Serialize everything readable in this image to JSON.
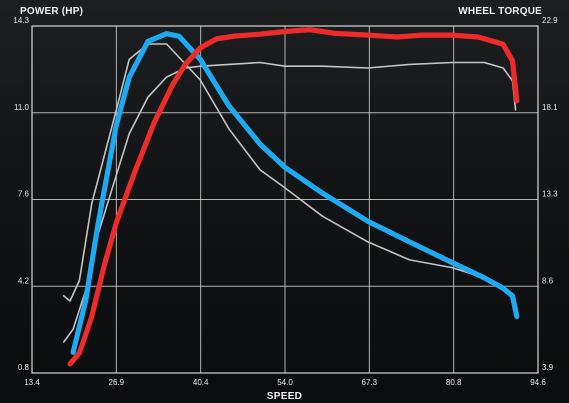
{
  "chart_data": {
    "type": "line",
    "left_axis_title": "POWER (HP)",
    "right_axis_title": "WHEEL TORQUE",
    "xlabel": "SPEED",
    "x_ticks": [
      "13.4",
      "26.9",
      "40.4",
      "54.0",
      "67.3",
      "80.8",
      "94.6"
    ],
    "y_left_ticks": [
      "0.8",
      "4.2",
      "7.6",
      "11.0",
      "14.3"
    ],
    "y_right_ticks": [
      "3.9",
      "8.6",
      "13.3",
      "18.1",
      "22.9"
    ],
    "xlim": [
      13.4,
      94.6
    ],
    "ylim_left": [
      0.8,
      14.3
    ],
    "ylim_right": [
      3.9,
      22.9
    ],
    "grid": true,
    "series": [
      {
        "axis": "right",
        "color": "#ee2b2b",
        "x": [
          19.5,
          21,
          23,
          25,
          27,
          30,
          33,
          36,
          38,
          40.4,
          43,
          46,
          50,
          54,
          58,
          62,
          67.3,
          72,
          76,
          80.8,
          85,
          89,
          90.5,
          91.2
        ],
        "y": [
          4.4,
          5.0,
          7.0,
          9.8,
          12.2,
          15.0,
          17.6,
          19.7,
          20.8,
          21.7,
          22.2,
          22.35,
          22.45,
          22.6,
          22.7,
          22.5,
          22.4,
          22.3,
          22.4,
          22.4,
          22.3,
          21.9,
          21.0,
          18.8
        ]
      },
      {
        "axis": "left",
        "color": "#1eaaf0",
        "x": [
          20,
          22,
          24,
          26.9,
          29,
          32,
          35,
          37,
          40.4,
          45,
          50,
          54,
          60,
          67.3,
          74,
          80.8,
          86,
          89,
          90.5,
          91.2
        ],
        "y": [
          1.6,
          3.6,
          6.6,
          10.4,
          12.3,
          13.7,
          14.0,
          13.9,
          13.0,
          11.2,
          9.7,
          8.8,
          7.8,
          6.7,
          5.9,
          5.1,
          4.5,
          4.1,
          3.8,
          3.0
        ]
      },
      {
        "axis": "right",
        "color": "#c4c4c4",
        "x": [
          18.5,
          20,
          22,
          24,
          26.9,
          29,
          32,
          35,
          38,
          40.4,
          45,
          50,
          54,
          60,
          67.3,
          74,
          80.8,
          86,
          89,
          90.5,
          91
        ],
        "y": [
          5.6,
          6.3,
          8.4,
          11.5,
          14.7,
          17.0,
          19.0,
          20.1,
          20.6,
          20.7,
          20.8,
          20.9,
          20.7,
          20.7,
          20.6,
          20.8,
          20.9,
          20.9,
          20.6,
          19.9,
          18.3
        ]
      },
      {
        "axis": "left",
        "color": "#c4c4c4",
        "x": [
          18.5,
          19.5,
          21,
          23,
          26.9,
          29,
          32,
          35,
          40.4,
          45,
          50,
          54,
          60,
          67.3,
          74,
          80.8,
          86,
          89,
          90.5
        ],
        "y": [
          3.8,
          3.6,
          4.4,
          7.4,
          11.0,
          13.0,
          13.6,
          13.6,
          12.2,
          10.3,
          8.7,
          8.0,
          6.9,
          5.9,
          5.2,
          4.9,
          4.5,
          4.1,
          3.8
        ]
      }
    ]
  }
}
